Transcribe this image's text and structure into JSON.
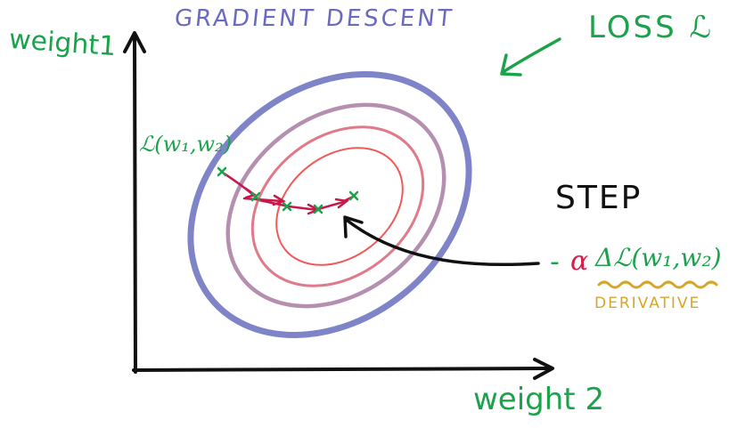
{
  "title": "GRADIENT DESCENT",
  "y_axis_label": "weight1",
  "x_axis_label": "weight 2",
  "loss_label": "LOSS ℒ",
  "point_label": "ℒ(w₁,w₂)",
  "step_label": "STEP",
  "update_rule": {
    "minus": "-",
    "alpha": "α",
    "gradient": "Δℒ(w₁,w₂)"
  },
  "derivative_label": "DERIVATIVE",
  "colors": {
    "title": "#6a6ac0",
    "green_text": "#1aa34a",
    "outer_contour": "#7f84c8",
    "second_contour": "#b48fb0",
    "third_contour": "#e0798a",
    "inner_contour": "#ef5a5a",
    "step_path": "#c8174a",
    "step_markers": "#1aa34a",
    "derivative": "#d7a628",
    "axes": "#111111"
  }
}
